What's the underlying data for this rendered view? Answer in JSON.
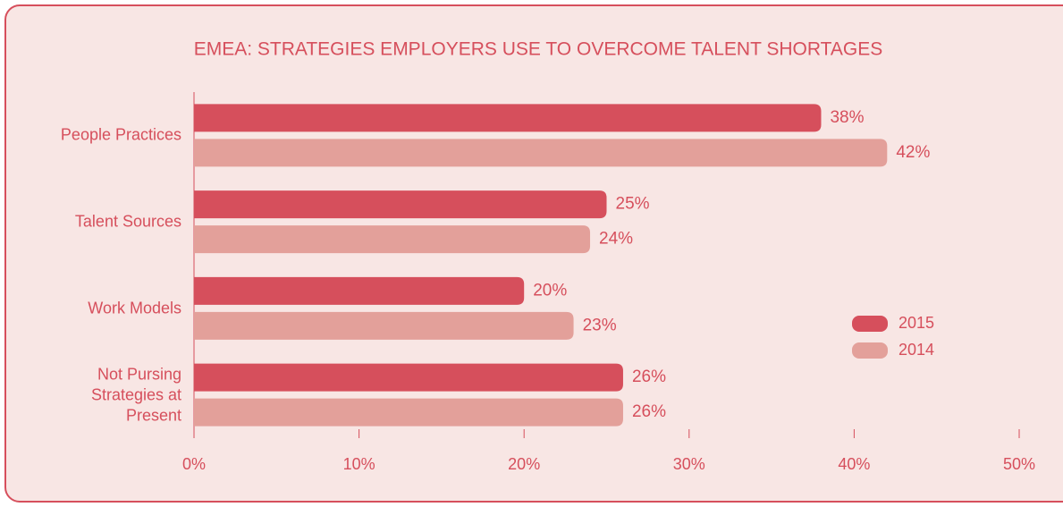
{
  "chart_data": {
    "type": "bar",
    "orientation": "horizontal",
    "title": "EMEA: STRATEGIES EMPLOYERS USE TO OVERCOME TALENT SHORTAGES",
    "categories": [
      "People Practices",
      "Talent Sources",
      "Work Models",
      "Not Pursing Strategies at Present"
    ],
    "series": [
      {
        "name": "2015",
        "color": "#d64f5c",
        "values": [
          38,
          25,
          20,
          26
        ],
        "value_labels": [
          "38%",
          "25%",
          "20%",
          "26%"
        ]
      },
      {
        "name": "2014",
        "color": "#e3a09a",
        "values": [
          42,
          24,
          23,
          26
        ],
        "value_labels": [
          "42%",
          "24%",
          "23%",
          "26%"
        ]
      }
    ],
    "xlim": [
      0,
      50
    ],
    "xticks": [
      {
        "value": 0,
        "label": "0%"
      },
      {
        "value": 10,
        "label": "10%"
      },
      {
        "value": 20,
        "label": "20%"
      },
      {
        "value": 30,
        "label": "30%"
      },
      {
        "value": 40,
        "label": "40%"
      },
      {
        "value": 50,
        "label": "50%"
      }
    ],
    "legend": "right"
  }
}
